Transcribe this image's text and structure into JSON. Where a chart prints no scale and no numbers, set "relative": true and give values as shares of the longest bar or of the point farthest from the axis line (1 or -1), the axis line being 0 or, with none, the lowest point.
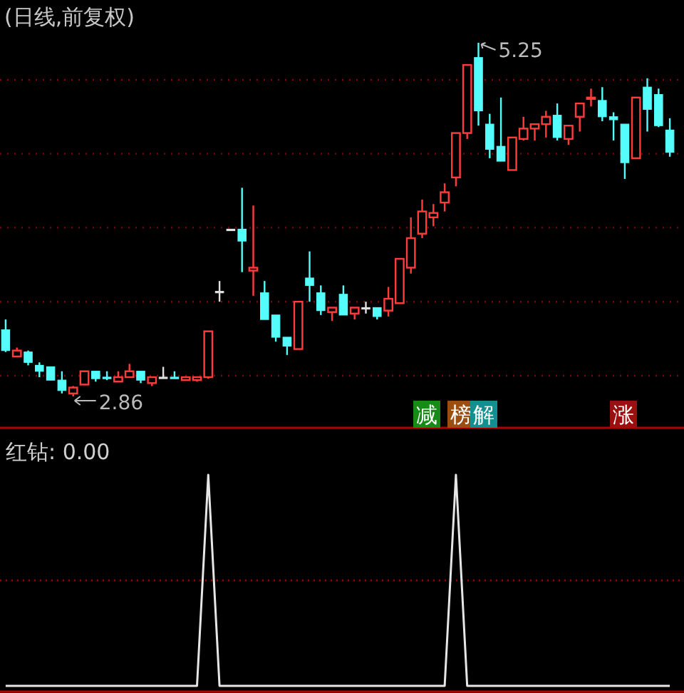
{
  "chart_data": [
    {
      "type": "candlestick",
      "title": "(日线,前复权)",
      "categories": [
        null,
        null,
        null,
        null,
        null,
        null,
        null,
        null,
        null,
        null,
        null,
        null,
        null,
        null,
        null,
        null,
        null,
        null,
        null,
        null,
        null,
        null,
        null,
        null,
        null,
        null,
        null,
        null,
        null,
        null,
        null,
        null,
        null,
        null,
        null,
        null,
        null,
        null,
        null,
        null,
        null,
        null,
        null,
        null,
        null,
        null,
        null,
        null,
        null,
        null,
        null,
        null,
        null,
        null,
        null,
        null,
        null,
        null,
        null,
        null
      ],
      "ohlc": [
        [
          3.31,
          3.38,
          3.16,
          3.17
        ],
        [
          3.13,
          3.19,
          3.13,
          3.17
        ],
        [
          3.16,
          3.17,
          3.07,
          3.09
        ],
        [
          3.07,
          3.09,
          2.99,
          3.03
        ],
        [
          3.06,
          3.06,
          2.97,
          2.97
        ],
        [
          2.97,
          3.03,
          2.88,
          2.9
        ],
        [
          2.88,
          2.93,
          2.86,
          2.92
        ],
        [
          2.94,
          3.03,
          2.94,
          3.03
        ],
        [
          3.03,
          3.03,
          2.96,
          2.98
        ],
        [
          2.99,
          3.03,
          2.97,
          2.98
        ],
        [
          2.96,
          3.03,
          2.96,
          2.99
        ],
        [
          2.99,
          3.08,
          2.99,
          3.03
        ],
        [
          3.03,
          3.03,
          2.95,
          2.97
        ],
        [
          2.95,
          2.99,
          2.93,
          2.99
        ],
        [
          2.99,
          3.06,
          2.99,
          2.99
        ],
        [
          2.99,
          3.03,
          2.98,
          2.98
        ],
        [
          2.97,
          2.99,
          2.97,
          2.99
        ],
        [
          2.97,
          2.99,
          2.96,
          2.99
        ],
        [
          2.99,
          3.3,
          2.98,
          3.3
        ],
        [
          3.57,
          3.64,
          3.5,
          3.57
        ],
        [
          3.99,
          3.99,
          3.99,
          3.99
        ],
        [
          3.99,
          4.27,
          3.7,
          3.91
        ],
        [
          3.71,
          4.15,
          3.54,
          3.73
        ],
        [
          3.56,
          3.64,
          3.38,
          3.38
        ],
        [
          3.41,
          3.41,
          3.23,
          3.26
        ],
        [
          3.26,
          3.26,
          3.14,
          3.2
        ],
        [
          3.18,
          3.5,
          3.18,
          3.5
        ],
        [
          3.66,
          3.84,
          3.5,
          3.61
        ],
        [
          3.56,
          3.61,
          3.41,
          3.44
        ],
        [
          3.43,
          3.46,
          3.37,
          3.46
        ],
        [
          3.55,
          3.61,
          3.41,
          3.41
        ],
        [
          3.42,
          3.46,
          3.38,
          3.46
        ],
        [
          3.46,
          3.5,
          3.42,
          3.46
        ],
        [
          3.46,
          3.46,
          3.38,
          3.4
        ],
        [
          3.44,
          3.6,
          3.4,
          3.52
        ],
        [
          3.49,
          3.79,
          3.49,
          3.79
        ],
        [
          3.73,
          4.07,
          3.69,
          3.93
        ],
        [
          3.96,
          4.19,
          3.93,
          4.11
        ],
        [
          4.07,
          4.16,
          4.01,
          4.1
        ],
        [
          4.17,
          4.3,
          4.11,
          4.24
        ],
        [
          4.34,
          4.64,
          4.28,
          4.64
        ],
        [
          4.64,
          5.1,
          4.6,
          5.1
        ],
        [
          5.15,
          5.25,
          4.69,
          4.79
        ],
        [
          4.7,
          4.77,
          4.47,
          4.53
        ],
        [
          4.55,
          4.88,
          4.45,
          4.45
        ],
        [
          4.39,
          4.61,
          4.39,
          4.61
        ],
        [
          4.6,
          4.75,
          4.59,
          4.67
        ],
        [
          4.67,
          4.7,
          4.59,
          4.7
        ],
        [
          4.7,
          4.79,
          4.61,
          4.75
        ],
        [
          4.76,
          4.84,
          4.59,
          4.61
        ],
        [
          4.6,
          4.69,
          4.56,
          4.69
        ],
        [
          4.75,
          4.84,
          4.65,
          4.84
        ],
        [
          4.87,
          4.94,
          4.82,
          4.88
        ],
        [
          4.86,
          4.95,
          4.72,
          4.75
        ],
        [
          4.75,
          4.78,
          4.59,
          4.73
        ],
        [
          4.7,
          4.7,
          4.33,
          4.44
        ],
        [
          4.47,
          4.88,
          4.47,
          4.88
        ],
        [
          4.95,
          5.01,
          4.65,
          4.8
        ],
        [
          4.9,
          4.94,
          4.68,
          4.69
        ],
        [
          4.66,
          4.74,
          4.48,
          4.51
        ]
      ],
      "colors": [
        "#54fcfc",
        "#ff3c3c",
        "#54fcfc",
        "#54fcfc",
        "#54fcfc",
        "#54fcfc",
        "#ff3c3c",
        "#ff3c3c",
        "#54fcfc",
        "#54fcfc",
        "#ff3c3c",
        "#ff3c3c",
        "#54fcfc",
        "#ff3c3c",
        "#e0e0e0",
        "#54fcfc",
        "#ff3c3c",
        "#ff3c3c",
        "#ff3c3c",
        "#e0e0e0",
        "#e0e0e0",
        "#54fcfc",
        "#ff3c3c",
        "#54fcfc",
        "#54fcfc",
        "#54fcfc",
        "#ff3c3c",
        "#54fcfc",
        "#54fcfc",
        "#ff3c3c",
        "#54fcfc",
        "#ff3c3c",
        "#e0e0e0",
        "#54fcfc",
        "#ff3c3c",
        "#ff3c3c",
        "#ff3c3c",
        "#ff3c3c",
        "#ff3c3c",
        "#ff3c3c",
        "#ff3c3c",
        "#ff3c3c",
        "#54fcfc",
        "#54fcfc",
        "#54fcfc",
        "#ff3c3c",
        "#ff3c3c",
        "#ff3c3c",
        "#ff3c3c",
        "#54fcfc",
        "#ff3c3c",
        "#ff3c3c",
        "#ff3c3c",
        "#54fcfc",
        "#54fcfc",
        "#54fcfc",
        "#ff3c3c",
        "#54fcfc",
        "#54fcfc",
        "#54fcfc"
      ],
      "yticks": [
        {
          "value": 3.0,
          "label": null
        },
        {
          "value": 3.5,
          "label": null
        },
        {
          "value": 4.0,
          "label": null
        },
        {
          "value": 4.5,
          "label": null
        },
        {
          "value": 5.0,
          "label": null
        }
      ],
      "grid": "y",
      "annotations": [
        "5.25",
        "2.86",
        "减",
        "榜",
        "解",
        "涨"
      ]
    },
    {
      "type": "line",
      "title": "红钻: 0.00",
      "relative": true,
      "categories": [
        null,
        null,
        null,
        null,
        null,
        null,
        null,
        null,
        null,
        null,
        null,
        null,
        null,
        null,
        null,
        null,
        null,
        null,
        null,
        null,
        null,
        null,
        null,
        null,
        null,
        null,
        null,
        null,
        null,
        null,
        null,
        null,
        null,
        null,
        null,
        null,
        null,
        null,
        null,
        null,
        null,
        null,
        null,
        null,
        null,
        null,
        null,
        null,
        null,
        null,
        null,
        null,
        null,
        null,
        null,
        null,
        null,
        null,
        null,
        null
      ],
      "series": [
        {
          "color": "#e6e6e6",
          "values": [
            0,
            0,
            0,
            0,
            0,
            0,
            0,
            0,
            0,
            0,
            0,
            0,
            0,
            0,
            0,
            0,
            0,
            0,
            1,
            0,
            0,
            0,
            0,
            0,
            0,
            0,
            0,
            0,
            0,
            0,
            0,
            0,
            0,
            0,
            0,
            0,
            0,
            0,
            0,
            0,
            1,
            0,
            0,
            0,
            0,
            0,
            0,
            0,
            0,
            0,
            0,
            0,
            0,
            0,
            0,
            0,
            0,
            0,
            0,
            0
          ]
        }
      ],
      "ref_lines": [
        {
          "axis": "y",
          "value": 0.5,
          "color": "#a00000",
          "line_style": "dotted"
        }
      ]
    }
  ]
}
